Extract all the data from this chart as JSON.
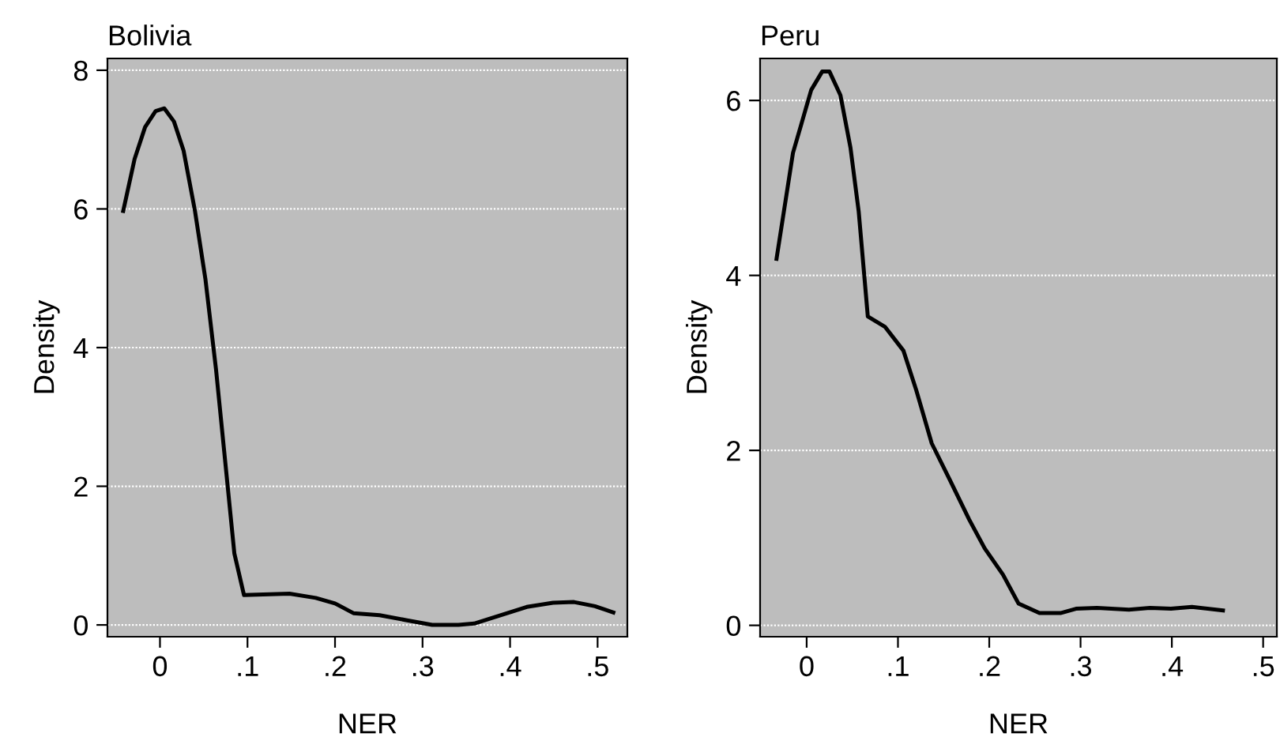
{
  "chart_data": [
    {
      "type": "line",
      "title": "Bolivia",
      "xlabel": "NER",
      "ylabel": "Density",
      "grid": "y",
      "legend": false,
      "x": [
        -0.042,
        -0.029,
        -0.017,
        -0.005,
        0.005,
        0.016,
        0.027,
        0.04,
        0.052,
        0.064,
        0.076,
        0.085,
        0.096,
        0.118,
        0.148,
        0.178,
        0.2,
        0.221,
        0.251,
        0.281,
        0.311,
        0.341,
        0.359,
        0.389,
        0.419,
        0.449,
        0.473,
        0.497,
        0.518
      ],
      "series": [
        {
          "color": "#000000",
          "values": [
            5.97,
            6.72,
            7.18,
            7.41,
            7.45,
            7.26,
            6.84,
            5.97,
            4.98,
            3.69,
            2.17,
            1.03,
            0.43,
            0.44,
            0.45,
            0.39,
            0.31,
            0.17,
            0.14,
            0.07,
            0.0,
            0.0,
            0.02,
            0.14,
            0.26,
            0.32,
            0.33,
            0.27,
            0.18
          ]
        }
      ],
      "xlim": [
        -0.06,
        0.534
      ],
      "ylim": [
        -0.17,
        8.17
      ],
      "xticks": [
        0,
        {
          "value": 0.1,
          "label": ".1"
        },
        {
          "value": 0.2,
          "label": ".2"
        },
        {
          "value": 0.3,
          "label": ".3"
        },
        {
          "value": 0.4,
          "label": ".4"
        },
        {
          "value": 0.5,
          "label": ".5"
        }
      ],
      "yticks": [
        0,
        2,
        4,
        6,
        8
      ]
    },
    {
      "type": "line",
      "title": "Peru",
      "xlabel": "NER",
      "ylabel": "Density",
      "grid": "y",
      "legend": false,
      "x": [
        -0.033,
        -0.015,
        0.005,
        0.017,
        0.025,
        0.037,
        0.048,
        0.057,
        0.067,
        0.086,
        0.106,
        0.12,
        0.137,
        0.157,
        0.178,
        0.195,
        0.215,
        0.232,
        0.255,
        0.278,
        0.295,
        0.318,
        0.353,
        0.376,
        0.399,
        0.422,
        0.456
      ],
      "series": [
        {
          "color": "#000000",
          "values": [
            4.19,
            5.4,
            6.12,
            6.33,
            6.33,
            6.06,
            5.46,
            4.73,
            3.53,
            3.41,
            3.14,
            2.69,
            2.08,
            1.66,
            1.21,
            0.88,
            0.58,
            0.25,
            0.14,
            0.14,
            0.19,
            0.2,
            0.18,
            0.2,
            0.19,
            0.21,
            0.17
          ]
        }
      ],
      "xlim": [
        -0.051,
        0.515
      ],
      "ylim": [
        -0.13,
        6.48
      ],
      "xticks": [
        0,
        {
          "value": 0.1,
          "label": ".1"
        },
        {
          "value": 0.2,
          "label": ".2"
        },
        {
          "value": 0.3,
          "label": ".3"
        },
        {
          "value": 0.4,
          "label": ".4"
        },
        {
          "value": 0.5,
          "label": ".5"
        }
      ],
      "yticks": [
        0,
        2,
        4,
        6
      ]
    }
  ]
}
